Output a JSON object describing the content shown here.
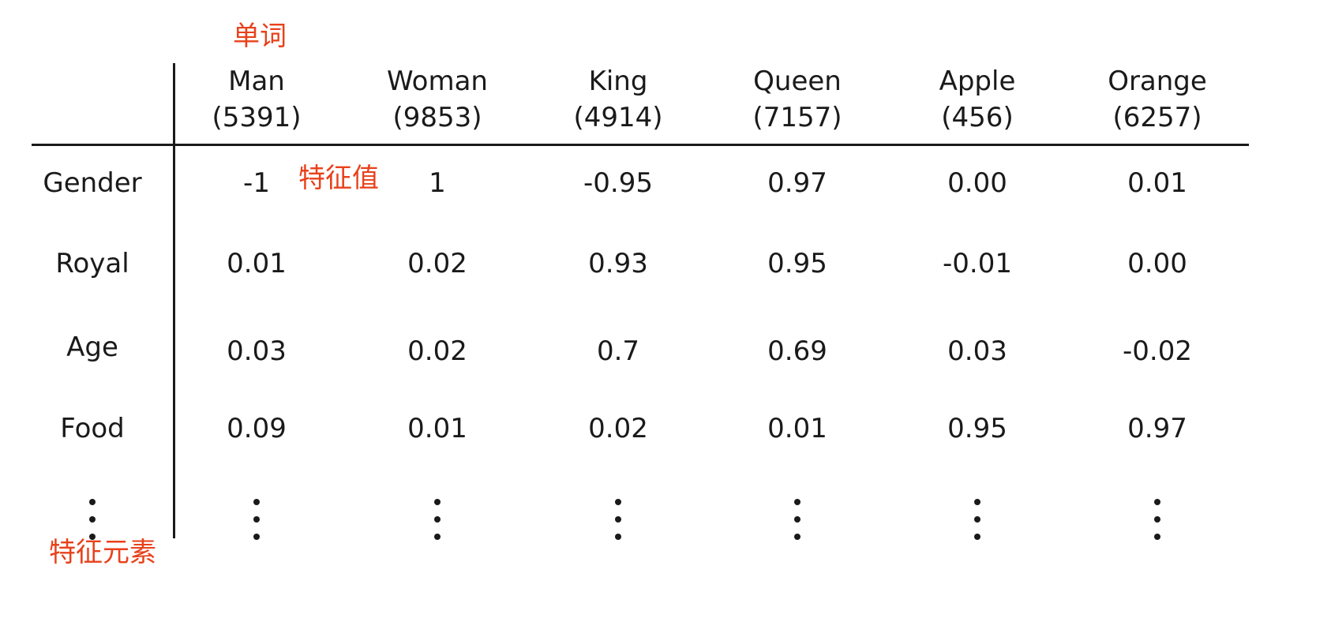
{
  "annotations": {
    "word": "单词",
    "feature_value": "特征值",
    "feature_element": "特征元素"
  },
  "columns": [
    {
      "word": "Man",
      "index": "(5391)"
    },
    {
      "word": "Woman",
      "index": "(9853)"
    },
    {
      "word": "King",
      "index": "(4914)"
    },
    {
      "word": "Queen",
      "index": "(7157)"
    },
    {
      "word": "Apple",
      "index": "(456)"
    },
    {
      "word": "Orange",
      "index": "(6257)"
    }
  ],
  "rows": [
    {
      "feature": "Gender",
      "values": [
        "-1",
        "1",
        "-0.95",
        "0.97",
        "0.00",
        "0.01"
      ]
    },
    {
      "feature": "Royal",
      "values": [
        "0.01",
        "0.02",
        "0.93",
        "0.95",
        "-0.01",
        "0.00"
      ]
    },
    {
      "feature": "Age",
      "values": [
        "0.03",
        "0.02",
        "0.7",
        "0.69",
        "0.03",
        "-0.02"
      ]
    },
    {
      "feature": "Food",
      "values": [
        "0.09",
        "0.01",
        "0.02",
        "0.01",
        "0.95",
        "0.97"
      ]
    }
  ],
  "colors": {
    "annotation": "#e8411b",
    "text": "#1a1a1a"
  }
}
